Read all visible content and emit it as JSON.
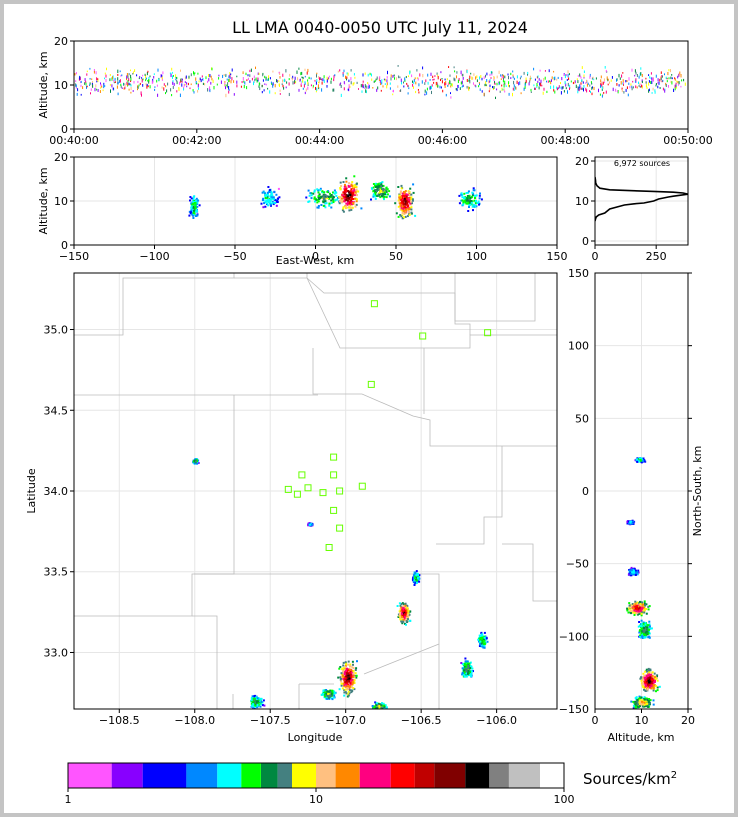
{
  "title": "LL LMA 0040-0050 UTC July 11, 2024",
  "chart_data": [
    {
      "id": "time-height",
      "type": "scatter",
      "ylabel": "Altitude, km",
      "xlim": [
        "00:40:00",
        "00:50:00"
      ],
      "ylim": [
        0,
        20
      ],
      "x_ticks": [
        "00:40:00",
        "00:42:00",
        "00:44:00",
        "00:46:00",
        "00:48:00",
        "00:50:00"
      ],
      "y_ticks": [
        0,
        10,
        20
      ],
      "altitude_band_km": [
        6,
        15
      ],
      "activity_peak_km": 11
    },
    {
      "id": "east-west-altitude",
      "type": "heatmap",
      "xlabel": "East-West, km",
      "ylabel": "Altitude, km",
      "xlim": [
        -150,
        150
      ],
      "ylim": [
        0,
        20
      ],
      "x_ticks": [
        -150,
        -100,
        -50,
        0,
        50,
        100,
        150
      ],
      "y_ticks": [
        0,
        10,
        20
      ],
      "clusters": [
        {
          "x": -76,
          "y": 9,
          "w": 4,
          "h": 4,
          "intensity": 0.4
        },
        {
          "x": -30,
          "y": 11,
          "w": 8,
          "h": 3,
          "intensity": 0.35
        },
        {
          "x": 5,
          "y": 11,
          "w": 14,
          "h": 3,
          "intensity": 0.5
        },
        {
          "x": 20,
          "y": 11.5,
          "w": 9,
          "h": 5,
          "intensity": 1.0
        },
        {
          "x": 40,
          "y": 12.5,
          "w": 8,
          "h": 3,
          "intensity": 0.55
        },
        {
          "x": 55,
          "y": 10,
          "w": 7,
          "h": 5,
          "intensity": 0.95
        },
        {
          "x": 95,
          "y": 10.5,
          "w": 9,
          "h": 3,
          "intensity": 0.45
        }
      ]
    },
    {
      "id": "altitude-histogram",
      "type": "line",
      "annotation": "6,972 sources",
      "xlim": [
        0,
        380
      ],
      "ylim": [
        -1,
        21
      ],
      "x_ticks": [
        0,
        250
      ],
      "y_ticks": [
        0,
        10,
        20
      ],
      "x": [
        0,
        2,
        5,
        15,
        40,
        60,
        90,
        120,
        160,
        200,
        240,
        260,
        300,
        320,
        380,
        360,
        320,
        240,
        140,
        60,
        20,
        8,
        3,
        2,
        0
      ],
      "y": [
        5,
        5.5,
        6,
        6.5,
        7,
        8,
        8.5,
        9,
        9.3,
        9.5,
        10,
        10.5,
        11,
        11.2,
        11.7,
        12,
        12.2,
        12.4,
        12.6,
        12.8,
        13.2,
        13.8,
        14.5,
        15.2,
        16
      ]
    },
    {
      "id": "plan-view",
      "type": "heatmap",
      "xlabel": "Longitude",
      "ylabel": "Latitude",
      "xlim": [
        -108.8,
        -105.6
      ],
      "ylim": [
        32.65,
        35.35
      ],
      "x_ticks": [
        -108.5,
        -108.0,
        -107.5,
        -107.0,
        -106.5,
        -106.0
      ],
      "y_ticks": [
        33.0,
        33.5,
        34.0,
        34.5,
        35.0
      ],
      "stations": [
        [
          -106.81,
          35.16
        ],
        [
          -106.49,
          34.96
        ],
        [
          -106.06,
          34.98
        ],
        [
          -106.83,
          34.66
        ],
        [
          -107.08,
          34.21
        ],
        [
          -107.29,
          34.1
        ],
        [
          -107.08,
          34.1
        ],
        [
          -107.38,
          34.01
        ],
        [
          -107.25,
          34.02
        ],
        [
          -107.32,
          33.98
        ],
        [
          -107.15,
          33.99
        ],
        [
          -107.04,
          34.0
        ],
        [
          -106.89,
          34.03
        ],
        [
          -107.08,
          33.88
        ],
        [
          -107.04,
          33.77
        ],
        [
          -107.11,
          33.65
        ]
      ],
      "clusters": [
        {
          "x": -108.0,
          "y": 34.19,
          "w": 0.02,
          "h": 0.02,
          "intensity": 0.5
        },
        {
          "x": -107.24,
          "y": 33.8,
          "w": 0.02,
          "h": 0.01,
          "intensity": 0.3
        },
        {
          "x": -106.54,
          "y": 33.47,
          "w": 0.03,
          "h": 0.05,
          "intensity": 0.4
        },
        {
          "x": -106.62,
          "y": 33.25,
          "w": 0.05,
          "h": 0.08,
          "intensity": 0.95
        },
        {
          "x": -106.1,
          "y": 33.08,
          "w": 0.04,
          "h": 0.06,
          "intensity": 0.45
        },
        {
          "x": -106.2,
          "y": 32.9,
          "w": 0.05,
          "h": 0.08,
          "intensity": 0.5
        },
        {
          "x": -106.99,
          "y": 32.85,
          "w": 0.07,
          "h": 0.13,
          "intensity": 1.0
        },
        {
          "x": -107.12,
          "y": 32.75,
          "w": 0.06,
          "h": 0.04,
          "intensity": 0.55
        },
        {
          "x": -106.78,
          "y": 32.67,
          "w": 0.06,
          "h": 0.03,
          "intensity": 0.6
        },
        {
          "x": -107.6,
          "y": 32.7,
          "w": 0.06,
          "h": 0.05,
          "intensity": 0.45
        }
      ]
    },
    {
      "id": "altitude-north-south",
      "type": "heatmap",
      "xlabel": "Altitude, km",
      "ylabel": "North-South, km",
      "xlim": [
        0,
        20
      ],
      "ylim": [
        -150,
        150
      ],
      "x_ticks": [
        0,
        10,
        20
      ],
      "y_ticks": [
        -150,
        -100,
        -50,
        0,
        50,
        100,
        150
      ],
      "clusters": [
        {
          "x": 9.5,
          "y": 22,
          "w": 1.2,
          "h": 2,
          "intensity": 0.4
        },
        {
          "x": 7.5,
          "y": -21,
          "w": 1,
          "h": 1.5,
          "intensity": 0.3
        },
        {
          "x": 8,
          "y": -55,
          "w": 1.5,
          "h": 3,
          "intensity": 0.35
        },
        {
          "x": 9,
          "y": -80,
          "w": 3,
          "h": 6,
          "intensity": 0.9
        },
        {
          "x": 10.5,
          "y": -95,
          "w": 2,
          "h": 8,
          "intensity": 0.5
        },
        {
          "x": 11.5,
          "y": -130,
          "w": 2.5,
          "h": 10,
          "intensity": 1.0
        },
        {
          "x": 10,
          "y": -145,
          "w": 3,
          "h": 5,
          "intensity": 0.65
        }
      ]
    },
    {
      "id": "colorbar",
      "type": "bar",
      "label": "Sources/km",
      "label_superscript": "2",
      "ticks": [
        "1",
        "10",
        "100"
      ],
      "colors": [
        "#ff55ff",
        "#8800ff",
        "#0000ff",
        "#0088ff",
        "#00ffff",
        "#00ff00",
        "#008840",
        "#448080",
        "#ffff00",
        "#ffc080",
        "#ff8800",
        "#ff0080",
        "#ff0000",
        "#c00000",
        "#800000",
        "#000000",
        "#808080",
        "#c0c0c0",
        "#ffffff"
      ],
      "edges": [
        1,
        1.5,
        2,
        3,
        4,
        5,
        6,
        7,
        8,
        10,
        12,
        15,
        20,
        25,
        30,
        40,
        50,
        60,
        80,
        100
      ]
    }
  ],
  "map_colors": {
    "county_lines": "#bbbbbb",
    "station": "#66ff00",
    "grid": "#e6e6e6"
  }
}
